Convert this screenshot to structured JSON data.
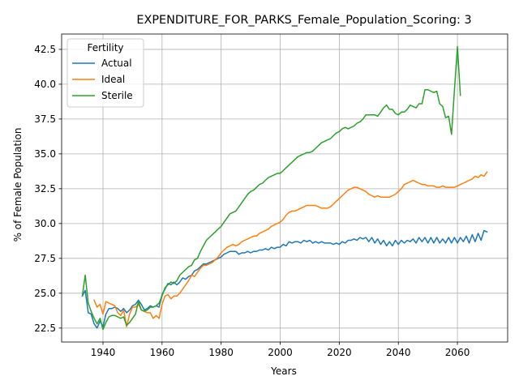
{
  "chart_data": {
    "type": "line",
    "title": "EXPENDITURE_FOR_PARKS_Female_Population_Scoring: 3",
    "xlabel": "Years",
    "ylabel": "% of Female Population",
    "xlim": [
      1926,
      2077
    ],
    "ylim": [
      21.5,
      43.6
    ],
    "xticks": [
      1940,
      1960,
      1980,
      2000,
      2020,
      2040,
      2060
    ],
    "xtick_labels": [
      "1940",
      "1960",
      "1980",
      "2000",
      "2020",
      "2040",
      "2060"
    ],
    "yticks": [
      22.5,
      25.0,
      27.5,
      30.0,
      32.5,
      35.0,
      37.5,
      40.0,
      42.5
    ],
    "ytick_labels": [
      "22.5",
      "25.0",
      "27.5",
      "30.0",
      "32.5",
      "35.0",
      "37.5",
      "40.0",
      "42.5"
    ],
    "grid": true,
    "legend": {
      "title": "Fertility",
      "placement": "top-left"
    },
    "series": [
      {
        "name": "Actual",
        "color": "#1f77b4",
        "x": [
          1933,
          1934,
          1935,
          1936,
          1937,
          1938,
          1939,
          1940,
          1941,
          1942,
          1943,
          1944,
          1945,
          1946,
          1947,
          1948,
          1949,
          1950,
          1951,
          1952,
          1953,
          1954,
          1955,
          1956,
          1957,
          1958,
          1959,
          1960,
          1961,
          1962,
          1963,
          1964,
          1965,
          1966,
          1967,
          1968,
          1969,
          1970,
          1971,
          1972,
          1973,
          1974,
          1975,
          1976,
          1977,
          1978,
          1979,
          1980,
          1981,
          1982,
          1983,
          1984,
          1985,
          1986,
          1987,
          1988,
          1989,
          1990,
          1991,
          1992,
          1993,
          1994,
          1995,
          1996,
          1997,
          1998,
          1999,
          2000,
          2001,
          2002,
          2003,
          2004,
          2005,
          2006,
          2007,
          2008,
          2009,
          2010,
          2011,
          2012,
          2013,
          2014,
          2015,
          2016,
          2017,
          2018,
          2019,
          2020,
          2021,
          2022,
          2023,
          2024,
          2025,
          2026,
          2027,
          2028,
          2029,
          2030,
          2031,
          2032,
          2033,
          2034,
          2035,
          2036,
          2037,
          2038,
          2039,
          2040,
          2041,
          2042,
          2043,
          2044,
          2045,
          2046,
          2047,
          2048,
          2049,
          2050,
          2051,
          2052,
          2053,
          2054,
          2055,
          2056,
          2057,
          2058,
          2059,
          2060,
          2061,
          2062,
          2063,
          2064,
          2065,
          2066,
          2067,
          2068,
          2069,
          2070
        ],
        "y": [
          24.8,
          25.2,
          23.6,
          23.5,
          22.8,
          22.5,
          23.0,
          22.6,
          23.5,
          23.9,
          23.9,
          24.0,
          23.9,
          23.7,
          23.9,
          23.6,
          23.8,
          24.1,
          24.2,
          24.5,
          24.2,
          23.8,
          23.9,
          24.1,
          24.0,
          24.1,
          24.0,
          24.9,
          25.3,
          25.7,
          25.6,
          25.8,
          25.6,
          25.8,
          26.1,
          26.0,
          26.2,
          26.3,
          26.6,
          26.7,
          26.9,
          27.1,
          27.1,
          27.2,
          27.3,
          27.4,
          27.5,
          27.6,
          27.8,
          27.9,
          28.0,
          28.0,
          28.0,
          27.8,
          27.9,
          27.9,
          28.0,
          27.9,
          28.0,
          28.0,
          28.1,
          28.1,
          28.2,
          28.1,
          28.3,
          28.2,
          28.3,
          28.3,
          28.5,
          28.4,
          28.7,
          28.6,
          28.7,
          28.7,
          28.6,
          28.8,
          28.7,
          28.8,
          28.6,
          28.7,
          28.6,
          28.7,
          28.6,
          28.6,
          28.6,
          28.5,
          28.6,
          28.5,
          28.7,
          28.6,
          28.8,
          28.8,
          28.9,
          28.8,
          29.0,
          28.9,
          29.0,
          28.7,
          29.0,
          28.6,
          28.9,
          28.5,
          28.8,
          28.4,
          28.7,
          28.4,
          28.8,
          28.5,
          28.8,
          28.6,
          28.8,
          28.7,
          28.9,
          28.6,
          29.0,
          28.7,
          29.0,
          28.6,
          29.0,
          28.6,
          29.0,
          28.6,
          28.9,
          28.6,
          29.0,
          28.6,
          29.0,
          28.6,
          29.0,
          28.7,
          29.1,
          28.6,
          29.2,
          28.7,
          29.3,
          28.8,
          29.5,
          29.4
        ]
      },
      {
        "name": "Ideal",
        "color": "#ff7f0e",
        "x": [
          1937,
          1938,
          1939,
          1940,
          1941,
          1942,
          1943,
          1944,
          1945,
          1946,
          1947,
          1948,
          1949,
          1950,
          1951,
          1952,
          1953,
          1954,
          1955,
          1956,
          1957,
          1958,
          1959,
          1960,
          1961,
          1962,
          1963,
          1964,
          1965,
          1966,
          1967,
          1968,
          1969,
          1970,
          1971,
          1972,
          1973,
          1974,
          1975,
          1976,
          1977,
          1978,
          1979,
          1980,
          1981,
          1982,
          1983,
          1984,
          1985,
          1986,
          1987,
          1988,
          1989,
          1990,
          1991,
          1992,
          1993,
          1994,
          1995,
          1996,
          1997,
          1998,
          1999,
          2000,
          2001,
          2002,
          2003,
          2004,
          2005,
          2006,
          2007,
          2008,
          2009,
          2010,
          2011,
          2012,
          2013,
          2014,
          2015,
          2016,
          2017,
          2018,
          2019,
          2020,
          2021,
          2022,
          2023,
          2024,
          2025,
          2026,
          2027,
          2028,
          2029,
          2030,
          2031,
          2032,
          2033,
          2034,
          2035,
          2036,
          2037,
          2038,
          2039,
          2040,
          2041,
          2042,
          2043,
          2044,
          2045,
          2046,
          2047,
          2048,
          2049,
          2050,
          2051,
          2052,
          2053,
          2054,
          2055,
          2056,
          2057,
          2058,
          2059,
          2060,
          2061,
          2062,
          2063,
          2064,
          2065,
          2066,
          2067,
          2068,
          2069,
          2070
        ],
        "y": [
          24.5,
          24.0,
          24.2,
          23.5,
          24.4,
          24.3,
          24.2,
          24.1,
          23.6,
          23.4,
          23.8,
          22.6,
          23.5,
          24.0,
          24.0,
          24.2,
          23.8,
          23.7,
          23.6,
          23.6,
          23.2,
          23.4,
          23.2,
          24.2,
          24.8,
          24.9,
          24.6,
          24.8,
          24.8,
          25.0,
          25.3,
          25.6,
          25.9,
          26.3,
          26.2,
          26.5,
          26.8,
          27.0,
          27.0,
          27.1,
          27.2,
          27.4,
          27.6,
          27.9,
          28.1,
          28.3,
          28.4,
          28.5,
          28.4,
          28.5,
          28.7,
          28.8,
          28.9,
          29.0,
          29.1,
          29.1,
          29.3,
          29.4,
          29.5,
          29.6,
          29.8,
          29.9,
          30.0,
          30.1,
          30.3,
          30.6,
          30.8,
          30.9,
          30.9,
          31.0,
          31.1,
          31.2,
          31.3,
          31.3,
          31.3,
          31.3,
          31.2,
          31.1,
          31.1,
          31.1,
          31.2,
          31.4,
          31.6,
          31.8,
          32.0,
          32.2,
          32.4,
          32.5,
          32.6,
          32.6,
          32.5,
          32.4,
          32.3,
          32.1,
          32.0,
          31.9,
          32.0,
          31.9,
          31.9,
          31.9,
          31.9,
          32.0,
          32.1,
          32.3,
          32.5,
          32.8,
          32.9,
          33.0,
          33.1,
          33.0,
          32.9,
          32.8,
          32.8,
          32.7,
          32.7,
          32.7,
          32.6,
          32.6,
          32.7,
          32.6,
          32.6,
          32.6,
          32.6,
          32.7,
          32.8,
          32.9,
          33.0,
          33.1,
          33.2,
          33.4,
          33.3,
          33.5,
          33.4,
          33.7
        ]
      },
      {
        "name": "Sterile",
        "color": "#2ca02c",
        "x": [
          1933,
          1934,
          1935,
          1936,
          1937,
          1938,
          1939,
          1940,
          1941,
          1942,
          1943,
          1944,
          1945,
          1946,
          1947,
          1948,
          1949,
          1950,
          1951,
          1952,
          1953,
          1954,
          1955,
          1956,
          1957,
          1958,
          1959,
          1960,
          1961,
          1962,
          1963,
          1964,
          1965,
          1966,
          1967,
          1968,
          1969,
          1970,
          1971,
          1972,
          1973,
          1974,
          1975,
          1976,
          1977,
          1978,
          1979,
          1980,
          1981,
          1982,
          1983,
          1984,
          1985,
          1986,
          1987,
          1988,
          1989,
          1990,
          1991,
          1992,
          1993,
          1994,
          1995,
          1996,
          1997,
          1998,
          1999,
          2000,
          2001,
          2002,
          2003,
          2004,
          2005,
          2006,
          2007,
          2008,
          2009,
          2010,
          2011,
          2012,
          2013,
          2014,
          2015,
          2016,
          2017,
          2018,
          2019,
          2020,
          2021,
          2022,
          2023,
          2024,
          2025,
          2026,
          2027,
          2028,
          2029,
          2030,
          2031,
          2032,
          2033,
          2034,
          2035,
          2036,
          2037,
          2038,
          2039,
          2040,
          2041,
          2042,
          2043,
          2044,
          2045,
          2046,
          2047,
          2048,
          2049,
          2050,
          2051,
          2052,
          2053,
          2054,
          2055,
          2056,
          2057,
          2058,
          2059,
          2060,
          2061
        ],
        "y": [
          24.8,
          26.3,
          24.3,
          23.7,
          23.2,
          22.8,
          23.2,
          22.4,
          22.9,
          23.3,
          23.4,
          23.4,
          23.3,
          23.2,
          23.3,
          22.7,
          22.9,
          23.2,
          23.5,
          24.4,
          23.8,
          23.7,
          23.8,
          24.0,
          24.0,
          24.1,
          24.3,
          24.8,
          25.4,
          25.6,
          25.8,
          25.7,
          25.9,
          26.3,
          26.5,
          26.7,
          26.9,
          27.0,
          27.4,
          27.5,
          28.0,
          28.4,
          28.8,
          29.0,
          29.2,
          29.4,
          29.6,
          29.8,
          30.1,
          30.4,
          30.7,
          30.8,
          30.9,
          31.2,
          31.5,
          31.8,
          32.1,
          32.3,
          32.4,
          32.6,
          32.8,
          32.9,
          33.1,
          33.3,
          33.4,
          33.5,
          33.6,
          33.6,
          33.8,
          34.0,
          34.2,
          34.4,
          34.6,
          34.8,
          34.9,
          35.0,
          35.1,
          35.1,
          35.2,
          35.4,
          35.6,
          35.8,
          35.9,
          36.0,
          36.1,
          36.3,
          36.5,
          36.6,
          36.8,
          36.9,
          36.8,
          36.9,
          37.0,
          37.2,
          37.3,
          37.5,
          37.8,
          37.8,
          37.8,
          37.8,
          37.7,
          38.0,
          38.3,
          38.5,
          38.2,
          38.2,
          37.9,
          37.8,
          38.0,
          38.0,
          38.2,
          38.5,
          38.4,
          38.3,
          38.6,
          38.6,
          39.6,
          39.6,
          39.5,
          39.4,
          39.5,
          38.6,
          38.4,
          37.6,
          37.7,
          36.4,
          39.6,
          42.7,
          39.2
        ]
      }
    ]
  }
}
